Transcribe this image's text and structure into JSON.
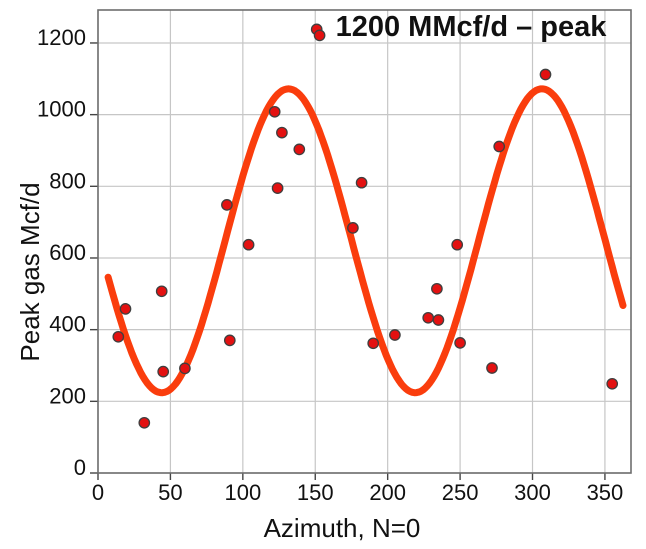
{
  "chart_data": {
    "type": "scatter",
    "title_annotation": "1200 MMcf/d – peak",
    "xlabel": "Azimuth, N=0",
    "ylabel": "Peak gas Mcf/d",
    "xlim": [
      0,
      368
    ],
    "ylim": [
      0,
      1292
    ],
    "xticks": [
      0,
      50,
      100,
      150,
      200,
      250,
      300,
      350
    ],
    "yticks": [
      0,
      200,
      400,
      600,
      800,
      1000,
      1200
    ],
    "grid": true,
    "legend": "none",
    "points": [
      [
        14,
        380
      ],
      [
        19,
        458
      ],
      [
        32,
        140
      ],
      [
        44,
        507
      ],
      [
        45,
        283
      ],
      [
        60,
        292
      ],
      [
        89,
        748
      ],
      [
        91,
        370
      ],
      [
        104,
        637
      ],
      [
        122,
        1008
      ],
      [
        124,
        795
      ],
      [
        127,
        950
      ],
      [
        139,
        903
      ],
      [
        151,
        1238
      ],
      [
        153,
        1221
      ],
      [
        176,
        684
      ],
      [
        182,
        810
      ],
      [
        190,
        362
      ],
      [
        205,
        385
      ],
      [
        228,
        433
      ],
      [
        234,
        514
      ],
      [
        235,
        427
      ],
      [
        248,
        637
      ],
      [
        250,
        363
      ],
      [
        272,
        293
      ],
      [
        277,
        911
      ],
      [
        309,
        1112
      ],
      [
        355,
        249
      ]
    ],
    "fit_curve": {
      "type": "cosine",
      "midline": 648,
      "amplitude": 424,
      "peak_azimuth": 131.5,
      "period_deg": 175,
      "domain": [
        7,
        363
      ]
    },
    "colors": {
      "point_fill": "#e31111",
      "point_edge": "#3f3f3f",
      "curve": "#fa3d0d",
      "grid": "#c6c6c6",
      "frame": "#6e6e6e",
      "tick": "#444444",
      "text": "#111111"
    }
  }
}
